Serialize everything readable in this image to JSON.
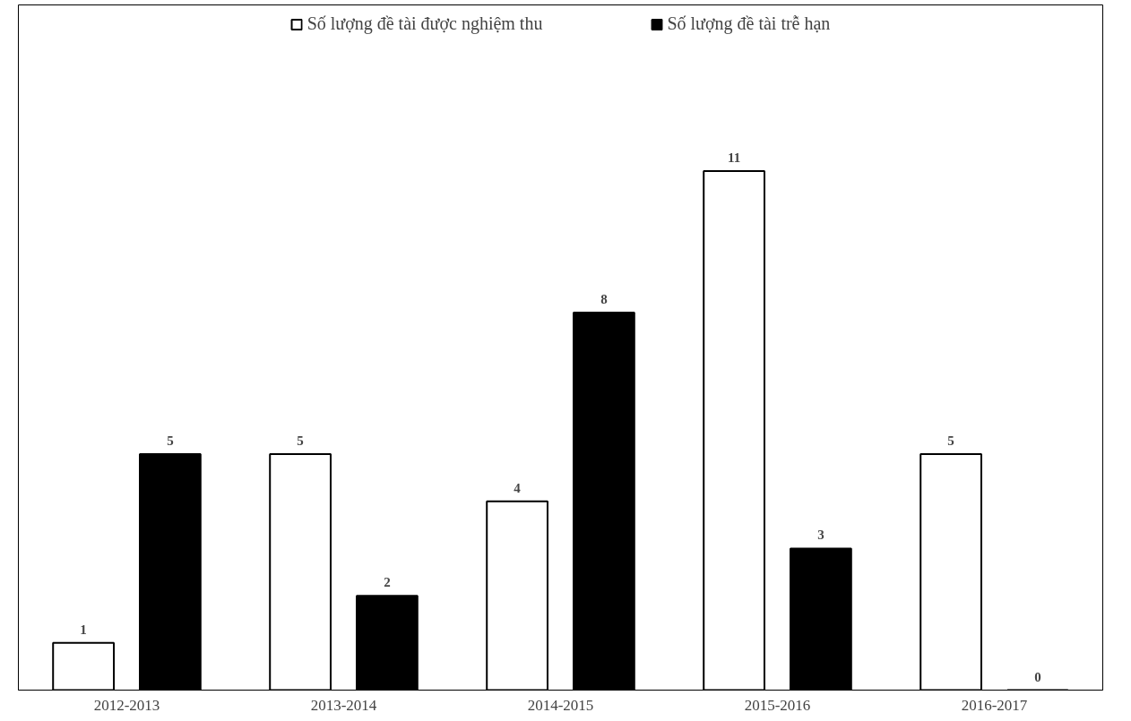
{
  "chart_data": {
    "type": "bar",
    "categories": [
      "2012-2013",
      "2013-2014",
      "2014-2015",
      "2015-2016",
      "2016-2017"
    ],
    "series": [
      {
        "name": "Số lượng đề tài được nghiệm thu",
        "color": "#ffffff",
        "values": [
          1,
          5,
          4,
          11,
          5
        ]
      },
      {
        "name": "Số lượng đề tài trễ hạn",
        "color": "#000000",
        "values": [
          5,
          2,
          8,
          3,
          0
        ]
      }
    ],
    "data_labels": true,
    "legend": "top",
    "grid": false
  }
}
